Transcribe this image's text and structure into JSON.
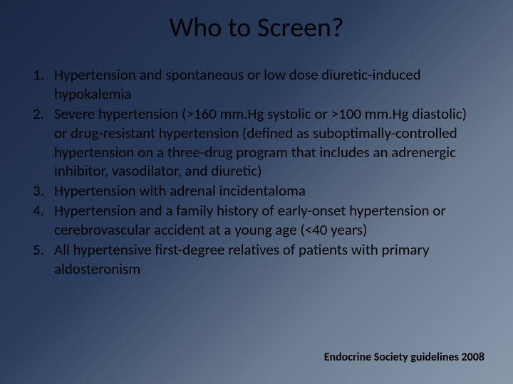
{
  "title": "Who to Screen?",
  "items": [
    {
      "num": "1.",
      "text": "Hypertension and spontaneous or low dose diuretic-induced hypokalemia"
    },
    {
      "num": "2.",
      "text": "Severe hypertension (>160 mm.Hg systolic or >100 mm.Hg diastolic) or drug-resistant hypertension (defined as suboptimally-controlled hypertension on a three-drug program that includes an adrenergic inhibitor, vasodilator, and diuretic)"
    },
    {
      "num": "3.",
      "text": "Hypertension with adrenal incidentaloma"
    },
    {
      "num": "4.",
      "text": "Hypertension and a family history of early-onset hypertension or cerebrovascular accident at a young age (<40 years)"
    },
    {
      "num": "5.",
      "text": "All hypertensive first-degree relatives of patients with primary aldosteronism"
    }
  ],
  "citation": "Endocrine Society guidelines 2008",
  "style": {
    "background_gradient": [
      "#1a2844",
      "#2a3d5c",
      "#6b7a8f",
      "#8a99aa"
    ],
    "title_fontsize": 38,
    "body_fontsize": 21,
    "citation_fontsize": 16,
    "text_color": "#000000",
    "font_family": "Calibri"
  }
}
